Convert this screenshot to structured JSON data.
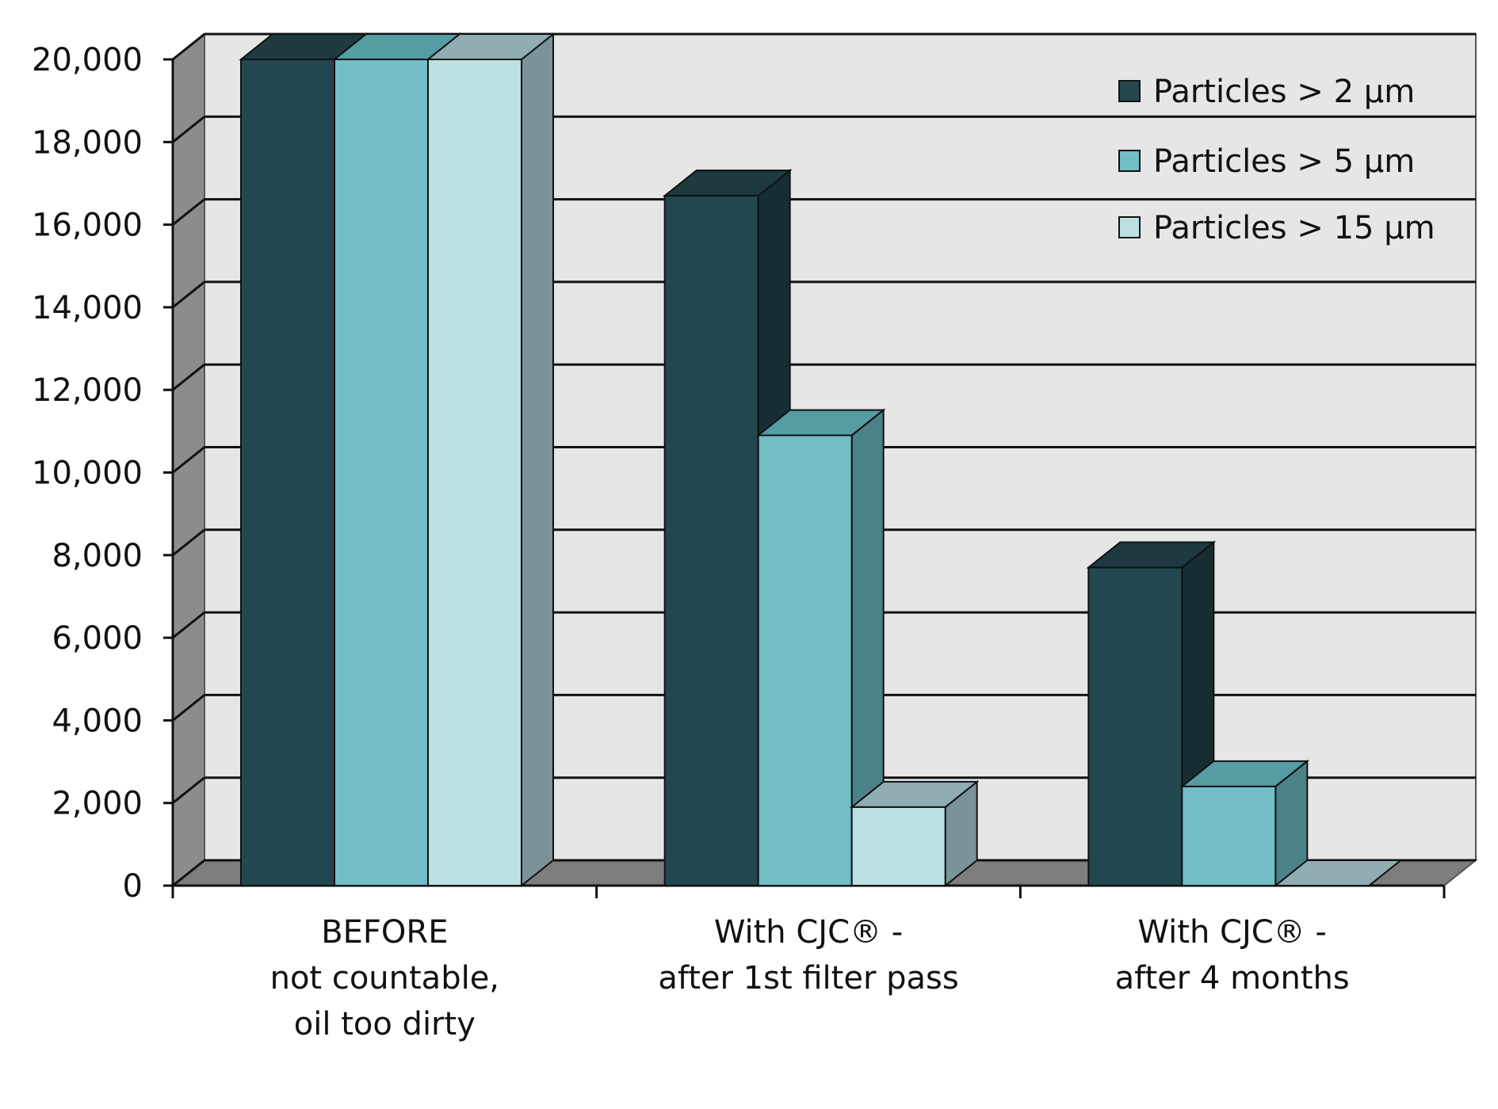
{
  "chart_data": {
    "type": "bar",
    "style": "3d-clustered-column",
    "categories": [
      [
        "BEFORE",
        "not countable,",
        "oil too dirty"
      ],
      [
        "With CJC® -",
        "after 1st filter pass"
      ],
      [
        "With CJC® -",
        "after 4 months"
      ]
    ],
    "series": [
      {
        "name": "Particles > 2 µm",
        "values": [
          20000,
          16700,
          7700
        ],
        "color": "#23474f",
        "top_color": "#1c3a40",
        "side_color": "#162e33"
      },
      {
        "name": "Particles > 5 µm",
        "values": [
          20000,
          10900,
          2400
        ],
        "color": "#72bdc6",
        "top_color": "#559ca3",
        "side_color": "#4a8288"
      },
      {
        "name": "Particles > 15 µm",
        "values": [
          20000,
          1900,
          0
        ],
        "color": "#bde0e2",
        "top_color": "#8fadb3",
        "side_color": "#7a9298"
      }
    ],
    "ylim": [
      0,
      20000
    ],
    "yticks": [
      "0",
      "2,000",
      "4,000",
      "6,000",
      "8,000",
      "10,000",
      "12,000",
      "14,000",
      "16,000",
      "18,000",
      "20,000"
    ],
    "grid": true,
    "legend_position": "top-right",
    "title": "",
    "xlabel": "",
    "ylabel": "",
    "colors": {
      "wall": "#e6e6e6",
      "wall_side": "#8c8c8c",
      "floor": "#7d7d7d",
      "grid": "#111111"
    }
  }
}
